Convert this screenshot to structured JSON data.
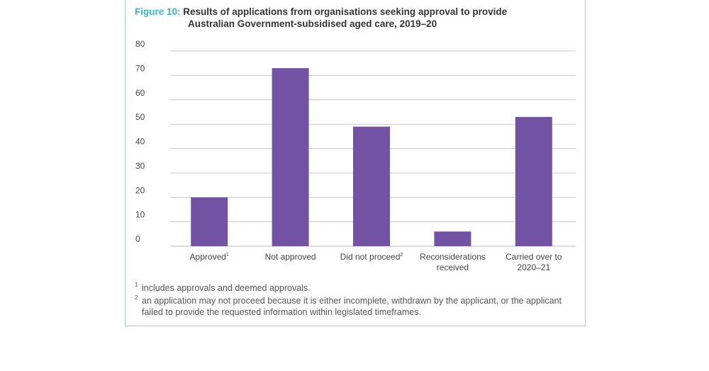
{
  "figure": {
    "number_label": "Figure 10:",
    "title_line1": "Results of applications from organisations seeking approval to provide",
    "title_line2": "Australian Government-subsidised aged care, 2019–20"
  },
  "chart_data": {
    "type": "bar",
    "categories": [
      {
        "label": [
          "Approved"
        ],
        "sup": "1"
      },
      {
        "label": [
          "Not approved"
        ],
        "sup": ""
      },
      {
        "label": [
          "Did not proceed"
        ],
        "sup": "2"
      },
      {
        "label": [
          "Reconsiderations",
          "received"
        ],
        "sup": ""
      },
      {
        "label": [
          "Carried over to",
          "2020–21"
        ],
        "sup": ""
      }
    ],
    "values": [
      20,
      73,
      49,
      6,
      53
    ],
    "ylim": [
      0,
      80
    ],
    "yticks": [
      0,
      10,
      20,
      30,
      40,
      50,
      60,
      70,
      80
    ],
    "grid": true,
    "bar_color": "#7152a3",
    "grid_color": "#c8c8c8"
  },
  "footnotes": [
    {
      "mark": "1",
      "text": "includes approvals and deemed approvals."
    },
    {
      "mark": "2",
      "text": "an application may not proceed because it is either incomplete, withdrawn by the applicant, or the applicant failed to provide the requested information within legislated timeframes."
    }
  ]
}
